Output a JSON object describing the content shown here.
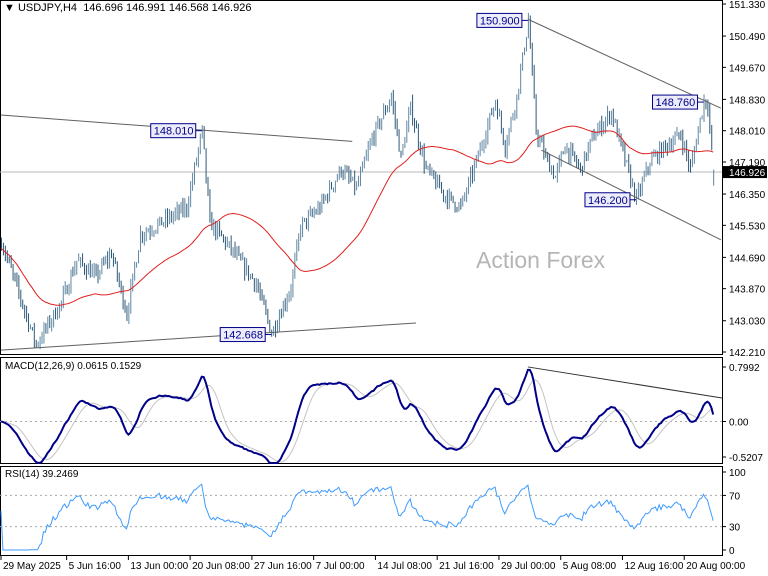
{
  "header": {
    "triangle": "▼",
    "symbol": "USDJPY,H4",
    "open": "146.696",
    "high": "146.991",
    "low": "146.568",
    "close": "146.926"
  },
  "watermark": "Action Forex",
  "colors": {
    "bars": "#5f87a3",
    "bars_dark": "#2e5877",
    "ma": "#e02020",
    "macd": "#000088",
    "signal": "#c4c4c4",
    "rsi": "#3d9bff",
    "trendline": "#606060",
    "label_border": "#00008b",
    "label_bg": "#ececfa",
    "price_tag_bg": "#000000"
  },
  "chart_data": [
    {
      "type": "ohlc",
      "panel": "price",
      "title": "USDJPY,H4",
      "timeframe": "H4",
      "current_price": 146.926,
      "ylim": [
        142.21,
        151.33
      ],
      "y_ticks": [
        "151.330",
        "150.490",
        "149.670",
        "148.830",
        "148.010",
        "147.190",
        "146.350",
        "145.530",
        "144.690",
        "143.870",
        "143.030",
        "142.210"
      ],
      "x_ticks": [
        "29 May 2025",
        "5 Jun 16:00",
        "13 Jun 00:00",
        "20 Jun 08:00",
        "27 Jun 16:00",
        "7 Jul 00:00",
        "14 Jul 08:00",
        "21 Jul 16:00",
        "29 Jul 00:00",
        "5 Aug 08:00",
        "12 Aug 16:00",
        "20 Aug 00:00"
      ],
      "x_tick_times": [
        "2025-05-29 00:00",
        "2025-06-05 16:00",
        "2025-06-13 00:00",
        "2025-06-20 08:00",
        "2025-06-27 16:00",
        "2025-07-07 00:00",
        "2025-07-14 08:00",
        "2025-07-21 16:00",
        "2025-07-29 00:00",
        "2025-08-05 08:00",
        "2025-08-12 16:00",
        "2025-08-20 00:00"
      ],
      "close_path": [
        [
          "2025-05-29 00:00",
          145.1
        ],
        [
          "2025-06-03 00:00",
          142.4
        ],
        [
          "2025-06-05 04:00",
          143.5
        ],
        [
          "2025-06-06 12:00",
          144.6
        ],
        [
          "2025-06-10 04:00",
          144.2
        ],
        [
          "2025-06-11 12:00",
          144.8
        ],
        [
          "2025-06-12 20:00",
          143.2
        ],
        [
          "2025-06-16 00:00",
          145.3
        ],
        [
          "2025-06-17 20:00",
          145.6
        ],
        [
          "2025-06-20 00:00",
          146.0
        ],
        [
          "2025-06-23 08:00",
          148.0
        ],
        [
          "2025-06-24 00:00",
          145.6
        ],
        [
          "2025-06-25 20:00",
          144.9
        ],
        [
          "2025-06-30 00:00",
          144.0
        ],
        [
          "2025-07-01 08:00",
          142.7
        ],
        [
          "2025-07-03 00:00",
          143.9
        ],
        [
          "2025-07-03 20:00",
          145.5
        ],
        [
          "2025-07-07 12:00",
          146.0
        ],
        [
          "2025-07-09 08:00",
          147.0
        ],
        [
          "2025-07-10 16:00",
          146.5
        ],
        [
          "2025-07-14 00:00",
          147.8
        ],
        [
          "2025-07-15 16:00",
          148.9
        ],
        [
          "2025-07-16 12:00",
          147.3
        ],
        [
          "2025-07-17 08:00",
          148.6
        ],
        [
          "2025-07-18 16:00",
          147.0
        ],
        [
          "2025-07-22 08:00",
          146.3
        ],
        [
          "2025-07-23 16:00",
          146.0
        ],
        [
          "2025-07-25 00:00",
          147.2
        ],
        [
          "2025-07-28 16:00",
          148.8
        ],
        [
          "2025-07-29 12:00",
          147.6
        ],
        [
          "2025-07-30 12:00",
          148.9
        ],
        [
          "2025-07-31 12:00",
          150.9
        ],
        [
          "2025-08-01 04:00",
          148.0
        ],
        [
          "2025-08-04 00:00",
          147.3
        ],
        [
          "2025-08-04 20:00",
          146.8
        ],
        [
          "2025-08-05 16:00",
          147.6
        ],
        [
          "2025-08-07 00:00",
          147.0
        ],
        [
          "2025-08-08 00:00",
          147.8
        ],
        [
          "2025-08-11 16:00",
          148.5
        ],
        [
          "2025-08-12 12:00",
          147.6
        ],
        [
          "2025-08-13 20:00",
          146.2
        ],
        [
          "2025-08-15 00:00",
          147.2
        ],
        [
          "2025-08-18 08:00",
          147.6
        ],
        [
          "2025-08-19 16:00",
          147.9
        ],
        [
          "2025-08-20 12:00",
          147.0
        ],
        [
          "2025-08-21 16:00",
          148.8
        ],
        [
          "2025-08-22 00:00",
          148.7
        ],
        [
          "2025-08-22 12:00",
          146.926
        ]
      ],
      "last_bar": {
        "open": 146.696,
        "high": 146.991,
        "low": 146.568,
        "close": 146.926
      },
      "moving_average_period": 50,
      "annotations": [
        {
          "text": "150.900",
          "time": "2025-07-31 12:00",
          "price": 150.9
        },
        {
          "text": "148.010",
          "time": "2025-06-23 08:00",
          "price": 148.01
        },
        {
          "text": "142.668",
          "time": "2025-07-01 08:00",
          "price": 142.668
        },
        {
          "text": "146.200",
          "time": "2025-08-13 20:00",
          "price": 146.2
        },
        {
          "text": "148.760",
          "time": "2025-08-21 16:00",
          "price": 148.76
        }
      ],
      "trendlines": [
        {
          "from": [
            "2025-05-29 00:00",
            148.42
          ],
          "to": [
            "2025-07-10 08:00",
            147.73
          ]
        },
        {
          "from": [
            "2025-05-29 00:00",
            142.26
          ],
          "to": [
            "2025-07-17 20:00",
            142.97
          ]
        },
        {
          "from": [
            "2025-07-31 12:00",
            150.93
          ],
          "to": [
            "2025-08-25 04:00",
            148.6
          ]
        },
        {
          "from": [
            "2025-08-01 16:00",
            147.5
          ],
          "to": [
            "2025-08-25 04:00",
            145.15
          ]
        }
      ]
    },
    {
      "type": "line",
      "panel": "macd",
      "title": "MACD(12,26,9) 0.0615 0.1529",
      "params": [
        12,
        26,
        9
      ],
      "values_shown": {
        "macd": "0.0615",
        "signal": "0.1529"
      },
      "ylim": [
        -0.5207,
        0.7992
      ],
      "y_ticks": [
        "0.7992",
        "0.00",
        "-0.5207"
      ],
      "trendline": {
        "from": [
          "2025-07-31 12:00",
          0.8
        ],
        "to": [
          "2025-08-25 04:00",
          0.345
        ]
      }
    },
    {
      "type": "line",
      "panel": "rsi",
      "title": "RSI(14) 39.2469",
      "period": 14,
      "value_shown": "39.2469",
      "ylim": [
        0,
        100
      ],
      "y_ticks": [
        "100",
        "70",
        "30",
        "0"
      ],
      "levels": [
        70,
        30
      ]
    }
  ]
}
